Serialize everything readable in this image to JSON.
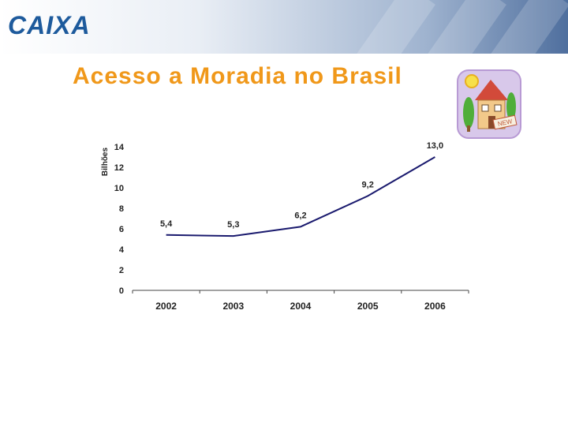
{
  "header": {
    "logo_text": "CAIXA"
  },
  "title": "Acesso a Moradia no Brasil",
  "clipart": {
    "sign_text": "NEW"
  },
  "colors": {
    "title": "#f0981a",
    "logo_blue": "#1d5a9c",
    "logo_orange": "#f08a1d",
    "line": "#1a1a6e"
  },
  "chart_data": {
    "type": "line",
    "categories": [
      "2002",
      "2003",
      "2004",
      "2005",
      "2006"
    ],
    "series": [
      {
        "values": [
          5.4,
          5.3,
          6.2,
          9.2,
          13.0
        ]
      }
    ],
    "data_labels": [
      "5,4",
      "5,3",
      "6,2",
      "9,2",
      "13,0"
    ],
    "ylabel": "Bilhões",
    "xlabel": "",
    "ylim": [
      0,
      14
    ],
    "yticks": [
      "0",
      "2",
      "4",
      "6",
      "8",
      "10",
      "12",
      "14"
    ],
    "grid": false,
    "legend": "none"
  }
}
